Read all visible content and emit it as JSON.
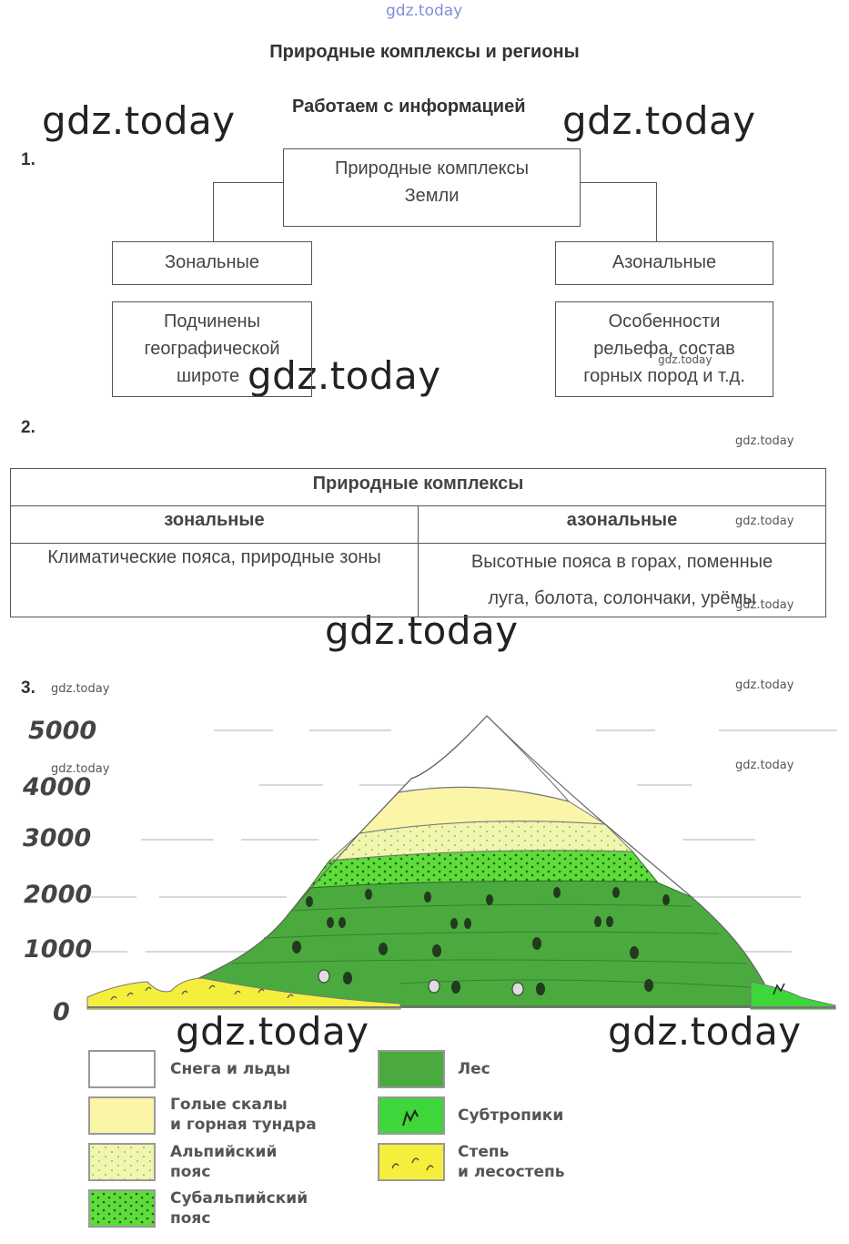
{
  "watermark_top": "gdz.today",
  "watermark": "gdz.today",
  "page_title": "Природные комплексы и регионы",
  "section_title": "Работаем с информацией",
  "task1": {
    "number": "1.",
    "root": [
      "Природные комплексы",
      "Земли"
    ],
    "left_type": "Зональные",
    "right_type": "Азональные",
    "left_desc": [
      "Подчинены",
      "географической",
      "широте"
    ],
    "right_desc": [
      "Особенности",
      "рельефа, состав",
      "горных пород и т.д."
    ]
  },
  "task2": {
    "number": "2.",
    "table_title": "Природные комплексы",
    "col_left": "зональные",
    "col_right": "азональные",
    "cell_left": "Климатические пояса, природные зоны",
    "cell_right_1": "Высотные пояса в горах,  поменные",
    "cell_right_2": "луга, болота, солончаки, урёмы"
  },
  "task3": {
    "number": "3.",
    "y_labels": [
      "5000",
      "4000",
      "3000",
      "2000",
      "1000",
      "0"
    ],
    "legend": {
      "snow": [
        "Снега и льды"
      ],
      "rocks": [
        "Голые скалы",
        "и горная тундра"
      ],
      "alpine": [
        "Альпийский",
        "пояс"
      ],
      "subalpine": [
        "Субальпийский",
        "пояс"
      ],
      "forest": [
        "Лес"
      ],
      "subtropics": [
        "Субтропики"
      ],
      "steppe": [
        "Степь",
        "и лесостепь"
      ]
    },
    "colors": {
      "snow": "#ffffff",
      "rocks": "#fbf5a8",
      "alpine": "#f0f5b0",
      "subalpine": "#5edc3a",
      "forest": "#4aaa3e",
      "subtropics": "#3ed63a",
      "steppe": "#f3ef3c"
    }
  }
}
